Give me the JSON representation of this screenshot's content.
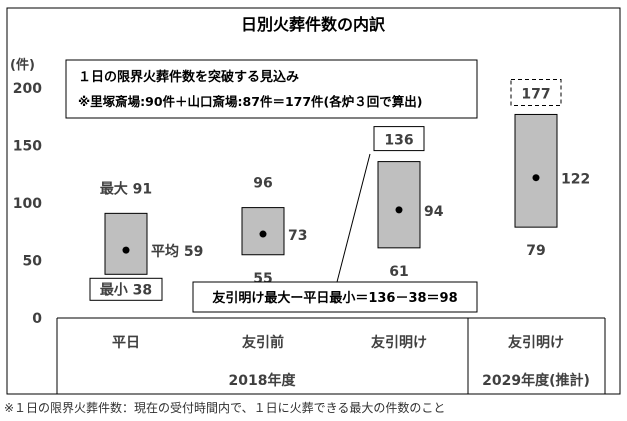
{
  "chart_data": {
    "type": "range-box",
    "title": "日別火葬件数の内訳",
    "unit_label": "(件)",
    "ylim": [
      0,
      200
    ],
    "yticks": [
      0,
      50,
      100,
      150,
      200
    ],
    "categories": [
      {
        "label": "平日",
        "group": "2018年度",
        "max": 91,
        "min": 38,
        "avg": 59,
        "max_label": "最大 91",
        "min_label": "最小 38",
        "avg_label": "平均 59"
      },
      {
        "label": "友引前",
        "group": "2018年度",
        "max": 96,
        "min": 55,
        "avg": 73,
        "max_label": "96",
        "min_label": "55",
        "avg_label": "73"
      },
      {
        "label": "友引明け",
        "group": "2018年度",
        "max": 136,
        "min": 61,
        "avg": 94,
        "max_label": "136",
        "min_label": "61",
        "avg_label": "94"
      },
      {
        "label": "友引明け",
        "group": "2029年度(推計)",
        "max": 177,
        "min": 79,
        "avg": 122,
        "max_label": "177",
        "min_label": "79",
        "avg_label": "122"
      }
    ],
    "groups": [
      "2018年度",
      "2029年度(推計)"
    ],
    "annotations": {
      "capacity_title": "１日の限界火葬件数を突破する見込み",
      "capacity_detail": "※里塚斎場:90件＋山口斎場:87件＝177件(各炉３回で算出)",
      "difference": "友引明け最大ー平日最小＝136－38＝98"
    }
  },
  "footnote": "※１日の限界火葬件数：現在の受付時間内で、１日に火葬できる最大の件数のこと",
  "colors": {
    "box_fill": "#bfbfbf",
    "box_stroke": "#000000",
    "axis_text": "#404040",
    "frame": "#000000"
  }
}
